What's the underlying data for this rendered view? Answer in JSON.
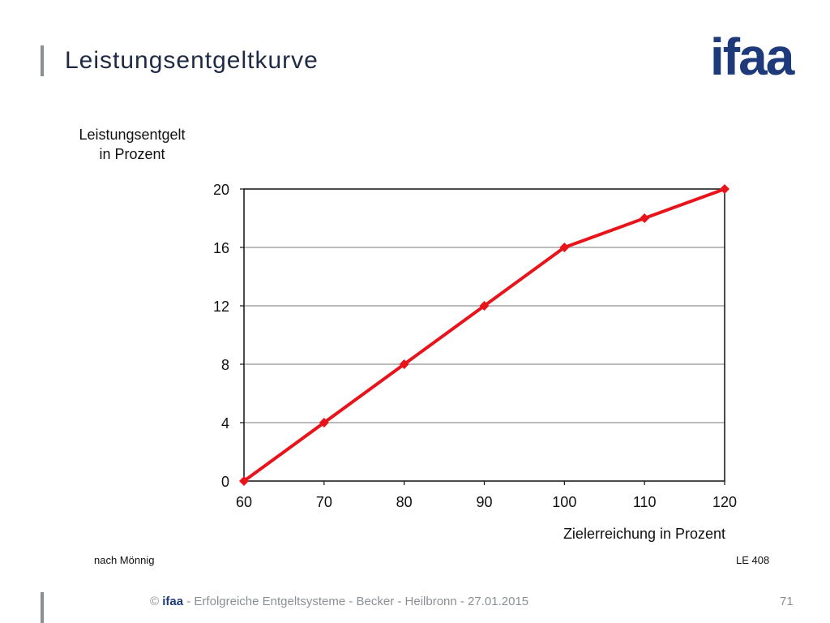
{
  "slide": {
    "title": "Leistungsentgeltkurve",
    "logo_text": "ifaa",
    "source_note": "nach Mönnig",
    "ref_code": "LE 408",
    "footer_prefix": "©",
    "footer_brand": "ifaa",
    "footer_text": "- Erfolgreiche Entgeltsysteme - Becker - Heilbronn - 27.01.2015",
    "page_number": "71"
  },
  "colors": {
    "line": "#e8141b",
    "title_text": "#1f2a44",
    "brand": "#1f3a7a",
    "accent_gray": "#8a8f96",
    "grid": "#a6a6a6"
  },
  "chart_data": {
    "type": "line",
    "title": "",
    "ylabel_line1": "Leistungsentgelt",
    "ylabel_line2": "in Prozent",
    "xlabel": "Zielerreichung in Prozent",
    "x": [
      60,
      70,
      80,
      90,
      100,
      110,
      120
    ],
    "xlim": [
      60,
      120
    ],
    "ylim": [
      0,
      20
    ],
    "yticks": [
      0,
      4,
      8,
      12,
      16,
      20
    ],
    "xticks": [
      60,
      70,
      80,
      90,
      100,
      110,
      120
    ],
    "grid": "horizontal",
    "marker": "diamond",
    "series": [
      {
        "values": [
          0,
          4,
          8,
          12,
          16,
          18,
          20
        ]
      }
    ]
  }
}
